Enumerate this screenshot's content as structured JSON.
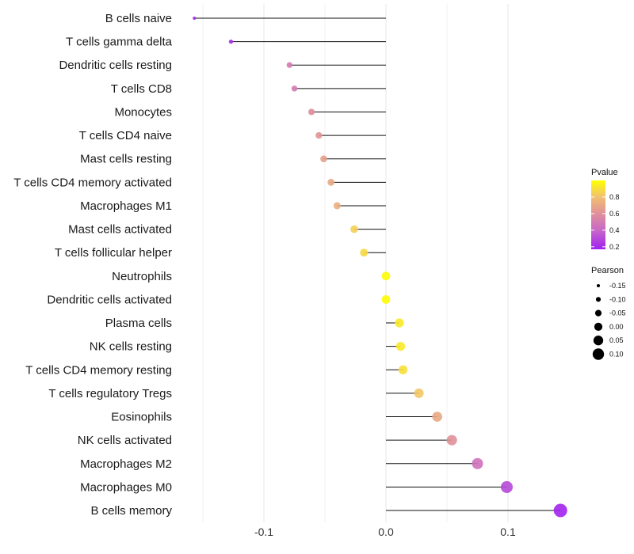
{
  "chart_data": {
    "type": "scatter",
    "subtype": "lollipop",
    "xlabel": "",
    "ylabel": "",
    "xlim": [
      -0.17,
      0.15
    ],
    "x_ticks": [
      -0.1,
      0.0,
      0.1
    ],
    "x_tick_labels": [
      "-0.1",
      "0.0",
      "0.1"
    ],
    "grid": true,
    "categories": [
      "B cells naive",
      "T cells gamma delta",
      "Dendritic cells resting",
      "T cells CD8",
      "Monocytes",
      "T cells CD4 naive",
      "Mast cells resting",
      "T cells CD4 memory activated",
      "Macrophages M1",
      "Mast cells activated",
      "T cells follicular helper",
      "Neutrophils",
      "Dendritic cells activated",
      "Plasma cells",
      "NK cells resting",
      "T cells CD4 memory resting",
      "T cells regulatory  Tregs",
      "Eosinophils",
      "NK cells activated",
      "Macrophages M2",
      "Macrophages M0",
      "B cells memory"
    ],
    "pearson": [
      -0.157,
      -0.127,
      -0.079,
      -0.075,
      -0.061,
      -0.055,
      -0.051,
      -0.045,
      -0.04,
      -0.026,
      -0.018,
      0.0,
      0.0,
      0.011,
      0.012,
      0.014,
      0.027,
      0.042,
      0.054,
      0.075,
      0.099,
      0.143
    ],
    "pvalue": [
      0.18,
      0.2,
      0.5,
      0.5,
      0.58,
      0.62,
      0.66,
      0.7,
      0.73,
      0.85,
      0.88,
      0.99,
      0.99,
      0.93,
      0.93,
      0.9,
      0.82,
      0.7,
      0.6,
      0.45,
      0.3,
      0.18
    ],
    "legend": {
      "placement": "right",
      "color": {
        "title": "Pvalue",
        "ticks": [
          0.2,
          0.4,
          0.6,
          0.8
        ],
        "tick_labels": [
          "0.2",
          "0.4",
          "0.6",
          "0.8"
        ],
        "low_color": "#a020f0",
        "high_color": "#ffff00",
        "range": [
          0.17,
          1.0
        ]
      },
      "size": {
        "title": "Pearson",
        "values": [
          -0.15,
          -0.1,
          -0.05,
          0.0,
          0.05,
          0.1
        ],
        "labels": [
          "-0.15",
          "-0.10",
          "-0.05",
          "0.00",
          "0.05",
          "0.10"
        ]
      }
    }
  }
}
